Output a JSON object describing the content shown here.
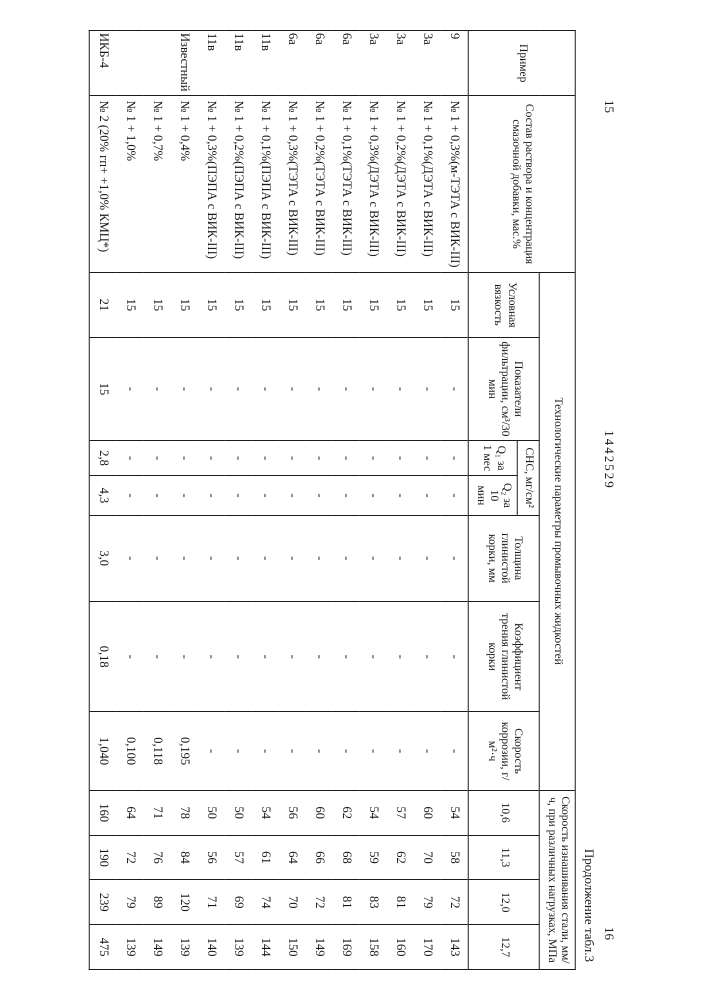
{
  "meta": {
    "pageLeft": "15",
    "docNumber": "1442529",
    "pageRight": "16",
    "continuation": "Продолжение табл.3"
  },
  "headers": {
    "primer": "Пример",
    "sostav": "Состав раствора и концентрация смазочной добавки, мас.%",
    "tech": "Технологические параметры промывочных жидкостей",
    "usl": "Условная вязкость",
    "filt": "Показатели фильтрации, см³/30 мин",
    "cnc": "СНС, мг/см²",
    "cnc1": "Q₁ за 1 мес",
    "cnc2": "Q₂ за 10 мин",
    "tol": "Толщина глинистой корки, мм",
    "koef": "Коэффициент трения глинистой корки",
    "skor": "Скорость коррозии, г/м²·ч",
    "wear": "Скорость изнашивания стали, мм/ч, при различных нагрузках, МПа",
    "w1": "10,6",
    "w2": "11,3",
    "w3": "12,0",
    "w4": "12,7"
  },
  "rows": [
    {
      "prim": "9",
      "comp": "№ 1 + 0,3%(м-ТЭТА с ВИК-III)",
      "usl": "15",
      "f": "-",
      "c1": "-",
      "c2": "-",
      "t": "-",
      "k": "-",
      "s": "-",
      "w": [
        "54",
        "58",
        "72",
        "143"
      ]
    },
    {
      "prim": "3а",
      "comp": "№ 1 + 0,1%(ДЭТА с ВИК-III)",
      "usl": "15",
      "f": "-",
      "c1": "-",
      "c2": "-",
      "t": "-",
      "k": "-",
      "s": "-",
      "w": [
        "60",
        "70",
        "79",
        "170"
      ]
    },
    {
      "prim": "3а",
      "comp": "№ 1 + 0,2%(ДЭТА с ВИК-III)",
      "usl": "15",
      "f": "-",
      "c1": "-",
      "c2": "-",
      "t": "-",
      "k": "-",
      "s": "-",
      "w": [
        "57",
        "62",
        "81",
        "160"
      ]
    },
    {
      "prim": "3а",
      "comp": "№ 1 + 0,3%(ДЭТА с ВИК-III)",
      "usl": "15",
      "f": "-",
      "c1": "-",
      "c2": "-",
      "t": "-",
      "k": "-",
      "s": "-",
      "w": [
        "54",
        "59",
        "83",
        "158"
      ]
    },
    {
      "prim": "6а",
      "comp": "№ 1 + 0,1%(ТЭТА с ВИК-III)",
      "usl": "15",
      "f": "-",
      "c1": "-",
      "c2": "-",
      "t": "-",
      "k": "-",
      "s": "-",
      "w": [
        "62",
        "68",
        "81",
        "169"
      ]
    },
    {
      "prim": "6а",
      "comp": "№ 1 + 0,2%(ТЭТА с ВИК-III)",
      "usl": "15",
      "f": "-",
      "c1": "-",
      "c2": "-",
      "t": "-",
      "k": "-",
      "s": "-",
      "w": [
        "60",
        "66",
        "72",
        "149"
      ]
    },
    {
      "prim": "6а",
      "comp": "№ 1 + 0,3%(ТЭТА с ВИК-III)",
      "usl": "15",
      "f": "-",
      "c1": "-",
      "c2": "-",
      "t": "-",
      "k": "-",
      "s": "-",
      "w": [
        "56",
        "64",
        "70",
        "150"
      ]
    },
    {
      "prim": "11в",
      "comp": "№ 1 + 0,1%(ПЭПА с ВИК-III)",
      "usl": "15",
      "f": "-",
      "c1": "-",
      "c2": "-",
      "t": "-",
      "k": "-",
      "s": "-",
      "w": [
        "54",
        "61",
        "74",
        "144"
      ]
    },
    {
      "prim": "11в",
      "comp": "№ 1 + 0,2%(ПЭПА с ВИК-III)",
      "usl": "15",
      "f": "-",
      "c1": "-",
      "c2": "-",
      "t": "-",
      "k": "-",
      "s": "-",
      "w": [
        "50",
        "57",
        "69",
        "139"
      ]
    },
    {
      "prim": "11в",
      "comp": "№ 1 + 0,3%(ПЭПА с ВИК-III)",
      "usl": "15",
      "f": "-",
      "c1": "-",
      "c2": "-",
      "t": "-",
      "k": "-",
      "s": "-",
      "w": [
        "50",
        "56",
        "71",
        "140"
      ]
    },
    {
      "prim": "Известный",
      "comp": "№ 1 + 0,4%",
      "usl": "15",
      "f": "-",
      "c1": "-",
      "c2": "-",
      "t": "-",
      "k": "-",
      "s": "0,195",
      "w": [
        "78",
        "84",
        "120",
        "139"
      ]
    },
    {
      "prim": "",
      "comp": "№ 1 + 0,7%",
      "usl": "15",
      "f": "-",
      "c1": "-",
      "c2": "-",
      "t": "-",
      "k": "-",
      "s": "0,118",
      "w": [
        "71",
        "76",
        "89",
        "149"
      ]
    },
    {
      "prim": "",
      "comp": "№ 1 + 1,0%",
      "usl": "15",
      "f": "-",
      "c1": "-",
      "c2": "-",
      "t": "-",
      "k": "-",
      "s": "0,100",
      "w": [
        "64",
        "72",
        "79",
        "139"
      ]
    },
    {
      "prim": "ИКБ-4",
      "comp": "№ 2 (20% гп+ +1,0% КМЦ*)",
      "usl": "21",
      "f": "15",
      "c1": "2,8",
      "c2": "4,3",
      "t": "3,0",
      "k": "0,18",
      "s": "1,040",
      "w": [
        "160",
        "190",
        "239",
        "475"
      ]
    }
  ]
}
